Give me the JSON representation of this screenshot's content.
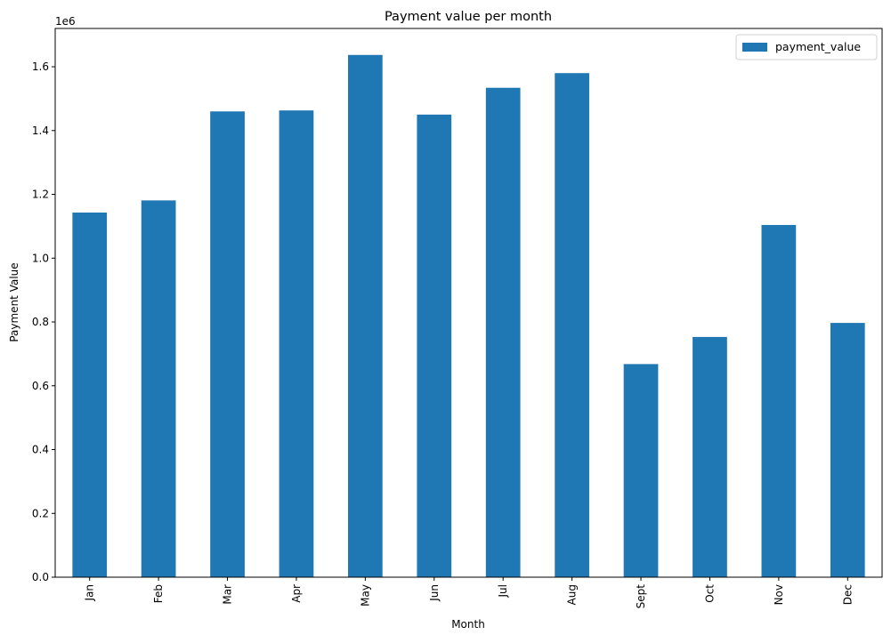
{
  "chart_data": {
    "type": "bar",
    "title": "Payment value per month",
    "xlabel": "Month",
    "ylabel": "Payment Value",
    "y_offset_label": "1e6",
    "y_scale_factor": 1000000,
    "ylim": [
      0,
      1720000
    ],
    "yticks": [
      0,
      200000,
      400000,
      600000,
      800000,
      1000000,
      1200000,
      1400000,
      1600000
    ],
    "ytick_labels": [
      "0.0",
      "0.2",
      "0.4",
      "0.6",
      "0.8",
      "1.0",
      "1.2",
      "1.4",
      "1.6"
    ],
    "categories": [
      "Jan",
      "Feb",
      "Mar",
      "Apr",
      "May",
      "Jun",
      "Jul",
      "Aug",
      "Sept",
      "Oct",
      "Nov",
      "Dec"
    ],
    "series": [
      {
        "name": "payment_value",
        "color": "#1f77b4",
        "values": [
          1143000,
          1181000,
          1460000,
          1463000,
          1637000,
          1450000,
          1534000,
          1580000,
          668000,
          753000,
          1104000,
          797000
        ]
      }
    ],
    "grid": false,
    "legend": "top-right"
  }
}
